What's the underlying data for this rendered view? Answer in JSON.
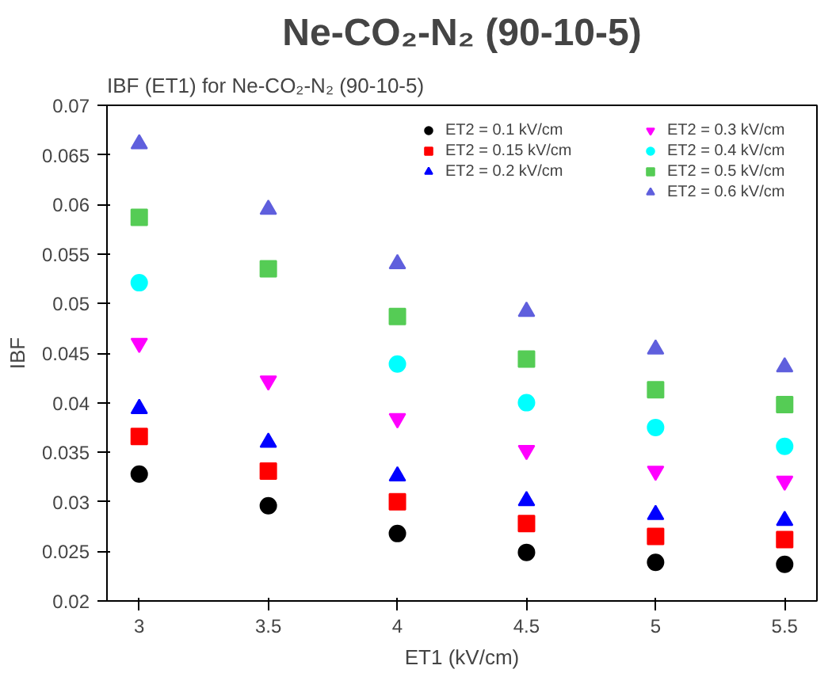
{
  "chart_data": {
    "type": "scatter",
    "title": "Ne-CO₂-N₂ (90-10-5)",
    "subtitle": "IBF (ET1) for Ne-CO₂-N₂ (90-10-5)",
    "xlabel": "ET1 (kV/cm)",
    "ylabel": "IBF",
    "x": [
      3,
      3.5,
      4,
      4.5,
      5,
      5.5
    ],
    "series": [
      {
        "name": "ET2 = 0.1 kV/cm",
        "color": "#000000",
        "marker": "circle",
        "values": [
          0.0328,
          0.0296,
          0.0268,
          0.0249,
          0.0239,
          0.0237
        ]
      },
      {
        "name": "ET2 = 0.15 kV/cm",
        "color": "#ff0000",
        "marker": "square",
        "values": [
          0.0366,
          0.0331,
          0.03,
          0.0278,
          0.0265,
          0.0262
        ]
      },
      {
        "name": "ET2 = 0.2 kV/cm",
        "color": "#0000ff",
        "marker": "triangle",
        "values": [
          0.0394,
          0.036,
          0.0326,
          0.0301,
          0.0287,
          0.0281
        ]
      },
      {
        "name": "ET2 = 0.3 kV/cm",
        "color": "#ff00ff",
        "marker": "triangle_down",
        "values": [
          0.046,
          0.0422,
          0.0384,
          0.0352,
          0.0331,
          0.0321
        ]
      },
      {
        "name": "ET2 = 0.4 kV/cm",
        "color": "#00ffff",
        "marker": "circle",
        "values": [
          0.0521,
          null,
          0.0439,
          0.04,
          0.0375,
          0.0356
        ]
      },
      {
        "name": "ET2 = 0.5 kV/cm",
        "color": "#55cc55",
        "marker": "square",
        "values": [
          0.0587,
          0.0535,
          0.0487,
          0.0444,
          0.0413,
          0.0398
        ]
      },
      {
        "name": "ET2 = 0.6 kV/cm",
        "color": "#5f5fdd",
        "marker": "triangle",
        "values": [
          0.0661,
          0.0595,
          0.054,
          0.0492,
          0.0454,
          0.0436
        ]
      }
    ],
    "xlim": [
      2.875,
      5.625
    ],
    "ylim": [
      0.02,
      0.07
    ],
    "xticks": [
      3,
      3.5,
      4,
      4.5,
      5,
      5.5
    ],
    "yticks": [
      0.02,
      0.025,
      0.03,
      0.035,
      0.04,
      0.045,
      0.05,
      0.055,
      0.06,
      0.065,
      0.07
    ],
    "grid": false,
    "legend": "top right"
  }
}
